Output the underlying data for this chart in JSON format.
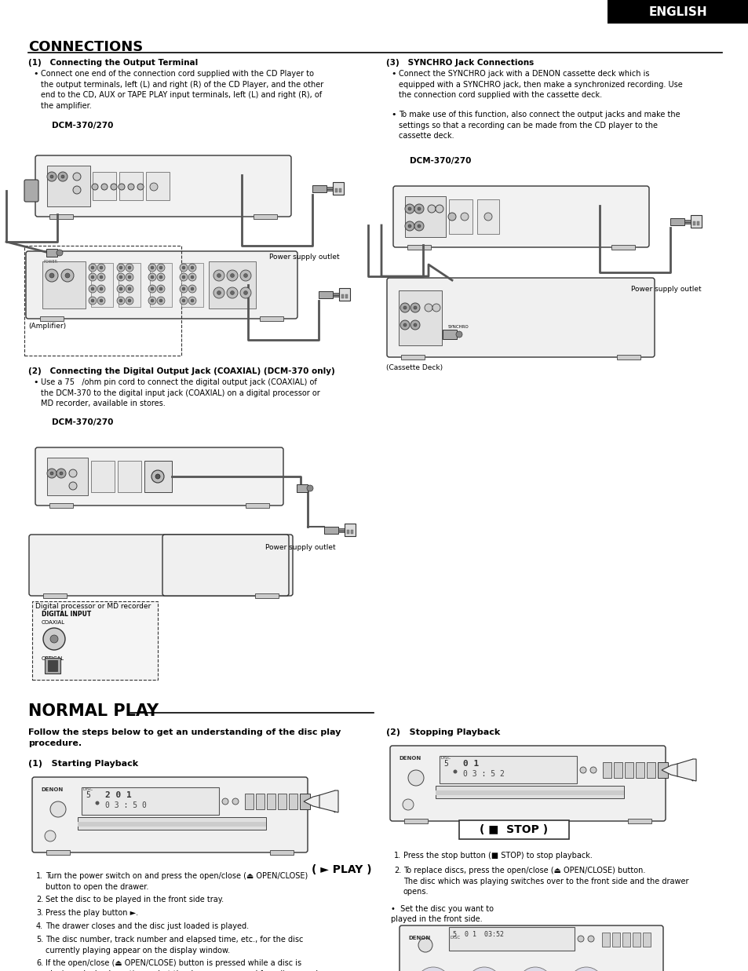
{
  "page_bg": "#ffffff",
  "english_bg": "#000000",
  "english_text": "ENGLISH",
  "english_text_color": "#ffffff",
  "connections_title": "CONNECTIONS",
  "normal_play_title": "NORMAL PLAY",
  "text_color": "#000000",
  "connections_left": {
    "heading1": "(1)   Connecting the Output Terminal",
    "bullet1": "Connect one end of the connection cord supplied with the CD Player to\nthe output terminals, left (L) and right (R) of the CD Player, and the other\nend to the CD, AUX or TAPE PLAY input terminals, left (L) and right (R), of\nthe amplifier.",
    "dcm_label1": "DCM-370/270",
    "amplifier_label": "(Amplifier)",
    "power_label1": "Power supply outlet",
    "heading2": "(2)   Connecting the Digital Output Jack (COAXIAL) (DCM-370 only)",
    "bullet2": "Use a 75   /ohm pin cord to connect the digital output jack (COAXIAL) of\nthe DCM-370 to the digital input jack (COAXIAL) on a digital processor or\nMD recorder, available in stores.",
    "dcm_label2": "DCM-370/270",
    "digital_label": "Digital processor or MD recorder",
    "power_label2": "Power supply outlet"
  },
  "connections_right": {
    "heading3": "(3)   SYNCHRO Jack Connections",
    "bullet3a": "Connect the SYNCHRO jack with a DENON cassette deck which is\nequipped with a SYNCHRO jack, then make a synchronized recording. Use\nthe connection cord supplied with the cassette deck.",
    "bullet3b": "To make use of this function, also connect the output jacks and make the\nsettings so that a recording can be made from the CD player to the\ncassette deck.",
    "dcm_label3": "DCM-370/270",
    "cassette_label": "(Cassette Deck)",
    "power_label3": "Power supply outlet"
  },
  "normal_play": {
    "intro": "Follow the steps below to get an understanding of the disc play\nprocedure.",
    "heading1": "(1)   Starting Playback",
    "play_label": "( ► PLAY )",
    "steps_left": [
      "Turn the power switch on and press the open/close (⏏ OPEN/CLOSE)\nbutton to open the drawer.",
      "Set the disc to be played in the front side tray.",
      "Press the play button ►.",
      "The drawer closes and the disc just loaded is played.",
      "The disc number, track number and elapsed time, etc., for the disc\ncurrently playing appear on the display window.",
      "If the open/close (⏏ OPEN/CLOSE) button is pressed while a disc is\nplaying, playback continues, but the drawer opens and four discs can be\nreplaced. The disc that can be replaced switches when the DISC SKIP\nbutton is pressed.\nPress the open/close (⏏ OPEN/CLOSE) button again to close the drawer."
    ],
    "heading2": "(2)   Stopping Playback",
    "stop_label": "( ■  STOP )",
    "steps_right": [
      "Press the stop button (■ STOP) to stop playback.",
      "To replace discs, press the open/close (⏏ OPEN/CLOSE) button.\nThe disc which was playing switches over to the front side and the drawer\nopens."
    ],
    "bullet_right": "•  Set the disc you want to\nplayed in the front side."
  }
}
